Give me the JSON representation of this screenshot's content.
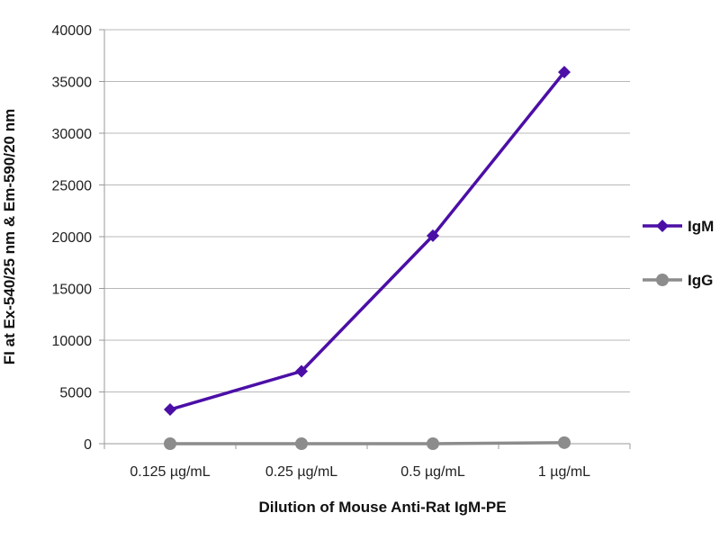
{
  "chart_data": {
    "type": "line",
    "title": "",
    "xlabel": "Dilution of Mouse Anti-Rat IgM-PE",
    "ylabel": "FI at Ex-540/25 nm & Em-590/20 nm",
    "categories": [
      "0.125 µg/mL",
      "0.25 µg/mL",
      "0.5 µg/mL",
      "1 µg/mL"
    ],
    "ylim": [
      0,
      40000
    ],
    "yticks": [
      0,
      5000,
      10000,
      15000,
      20000,
      25000,
      30000,
      35000,
      40000
    ],
    "grid": true,
    "legend_position": "right",
    "series": [
      {
        "name": "IgM",
        "values": [
          3300,
          7000,
          20100,
          35900
        ],
        "color": "#4b0fa6",
        "marker": "diamond"
      },
      {
        "name": "IgG",
        "values": [
          0,
          0,
          0,
          100
        ],
        "color": "#8c8c8c",
        "marker": "circle"
      }
    ]
  }
}
